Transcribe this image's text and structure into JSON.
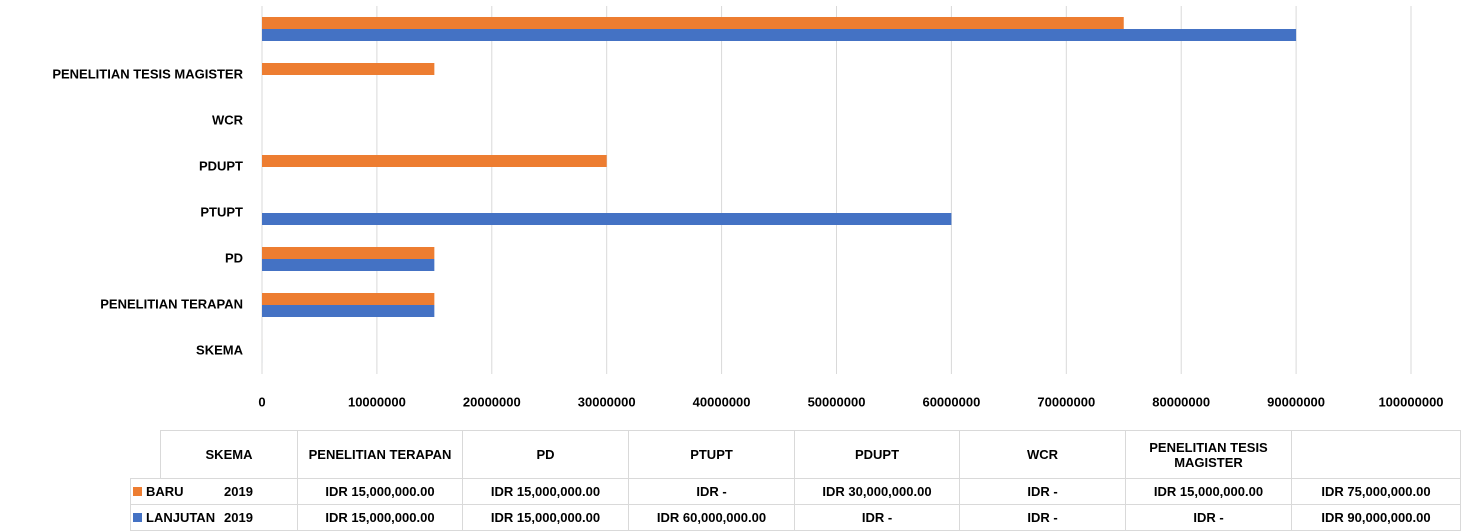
{
  "chart_data": {
    "type": "bar",
    "orientation": "horizontal",
    "categories": [
      "SKEMA",
      "PENELITIAN TERAPAN",
      "PD",
      "PTUPT",
      "PDUPT",
      "WCR",
      "PENELITIAN TESIS MAGISTER",
      null
    ],
    "series": [
      {
        "name": "BARU",
        "color": "#ED7D31",
        "values": [
          2019,
          15000000,
          15000000,
          0,
          30000000,
          0,
          15000000,
          75000000
        ],
        "value_labels": [
          "2019",
          "IDR 15,000,000.00",
          "IDR 15,000,000.00",
          "IDR -",
          "IDR 30,000,000.00",
          "IDR -",
          "IDR 15,000,000.00",
          "IDR 75,000,000.00"
        ]
      },
      {
        "name": "LANJUTAN",
        "color": "#4472C4",
        "values": [
          2019,
          15000000,
          15000000,
          60000000,
          0,
          0,
          0,
          90000000
        ],
        "value_labels": [
          "2019",
          "IDR 15,000,000.00",
          "IDR 15,000,000.00",
          "IDR 60,000,000.00",
          "IDR -",
          "IDR -",
          "IDR -",
          "IDR 90,000,000.00"
        ]
      }
    ],
    "xlim": [
      0,
      100000000
    ],
    "xticks": [
      0,
      10000000,
      20000000,
      30000000,
      40000000,
      50000000,
      60000000,
      70000000,
      80000000,
      90000000,
      100000000
    ],
    "grid": true,
    "data_table": true
  }
}
